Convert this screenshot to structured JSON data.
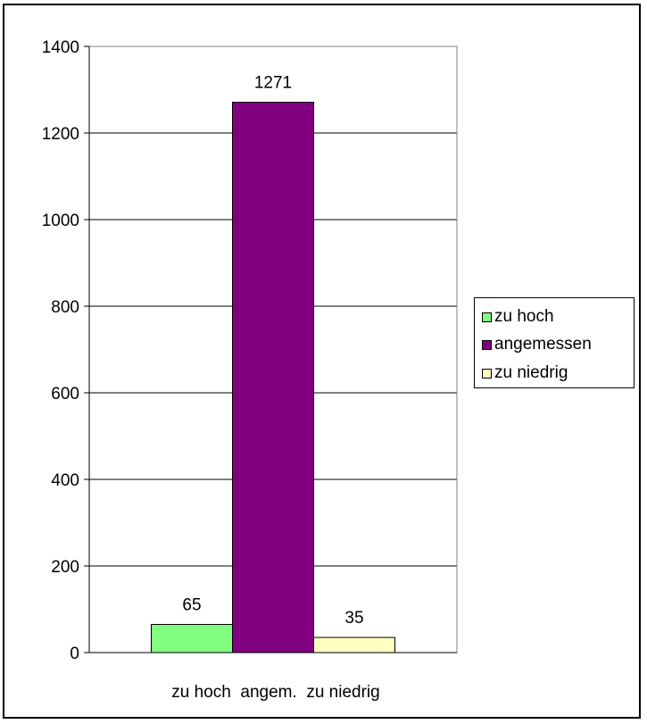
{
  "chart_data": {
    "type": "bar",
    "categories": [
      "zu hoch",
      "angem.",
      "zu niedrig"
    ],
    "values": [
      65,
      1271,
      35
    ],
    "data_labels": [
      "65",
      "1271",
      "35"
    ],
    "colors": [
      "#80FF80",
      "#800080",
      "#FFFFC0"
    ],
    "legend": [
      "zu hoch",
      "angemessen",
      "zu niedrig"
    ],
    "legend_position": "right",
    "title": "",
    "xlabel": "",
    "ylabel": "",
    "ylim": [
      0,
      1400
    ],
    "yticks": [
      0,
      200,
      400,
      600,
      800,
      1000,
      1200,
      1400
    ],
    "grid": true
  }
}
